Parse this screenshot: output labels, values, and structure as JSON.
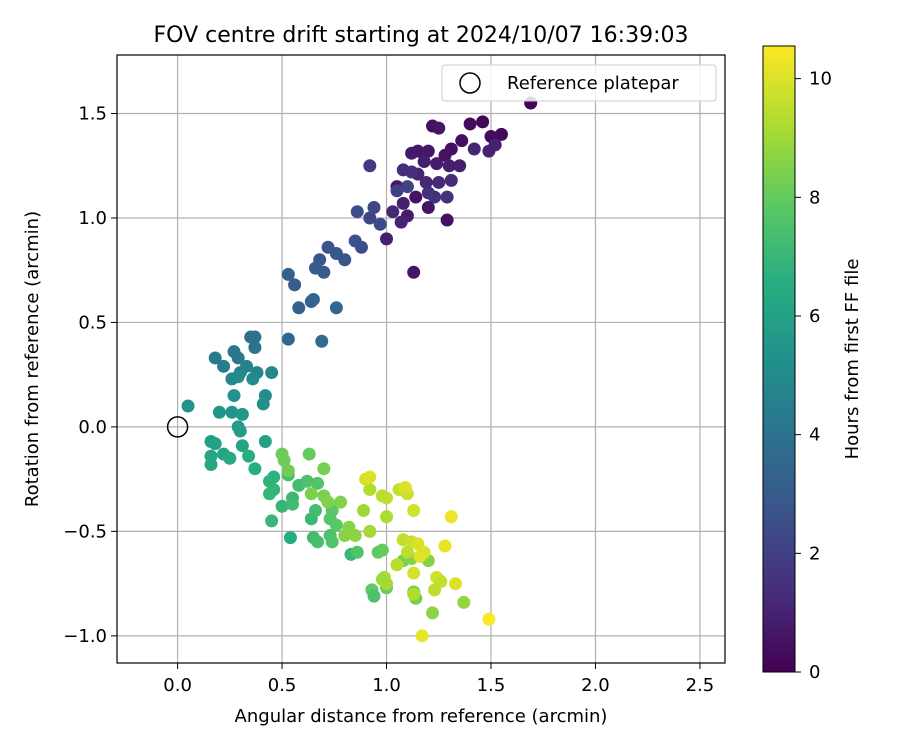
{
  "chart_data": {
    "type": "scatter",
    "title": "FOV centre drift starting at 2024/10/07 16:39:03",
    "xlabel": "Angular distance from reference (arcmin)",
    "ylabel": "Rotation from reference (arcmin)",
    "xlim": [
      -0.29,
      2.62
    ],
    "ylim": [
      -1.13,
      1.78
    ],
    "xticks": [
      0.0,
      0.5,
      1.0,
      1.5,
      2.0,
      2.5
    ],
    "xtick_labels": [
      "0.0",
      "0.5",
      "1.0",
      "1.5",
      "2.0",
      "2.5"
    ],
    "yticks": [
      -1.0,
      -0.5,
      0.0,
      0.5,
      1.0,
      1.5
    ],
    "ytick_labels": [
      "−1.0",
      "−0.5",
      "0.0",
      "0.5",
      "1.0",
      "1.5"
    ],
    "grid": true,
    "legend": {
      "placement": "top-right",
      "entries": [
        "Reference platepar"
      ]
    },
    "reference_point": {
      "x": 0.0,
      "y": 0.0
    },
    "colorbar": {
      "label": "Hours from first FF file",
      "range": [
        0,
        10.55
      ],
      "ticks": [
        0,
        2,
        4,
        6,
        8,
        10
      ],
      "tick_labels": [
        "0",
        "2",
        "4",
        "6",
        "8",
        "10"
      ],
      "colormap": "viridis"
    },
    "points": [
      {
        "x": 1.69,
        "y": 1.55,
        "c": 0.1
      },
      {
        "x": 1.46,
        "y": 1.46,
        "c": 0.2
      },
      {
        "x": 1.55,
        "y": 1.4,
        "c": 0.2
      },
      {
        "x": 1.5,
        "y": 1.39,
        "c": 0.3
      },
      {
        "x": 1.4,
        "y": 1.45,
        "c": 0.3
      },
      {
        "x": 1.36,
        "y": 1.37,
        "c": 0.4
      },
      {
        "x": 1.31,
        "y": 1.33,
        "c": 0.4
      },
      {
        "x": 1.28,
        "y": 1.3,
        "c": 0.5
      },
      {
        "x": 1.22,
        "y": 1.44,
        "c": 0.5
      },
      {
        "x": 1.25,
        "y": 1.43,
        "c": 0.6
      },
      {
        "x": 1.15,
        "y": 1.32,
        "c": 0.6
      },
      {
        "x": 1.12,
        "y": 1.31,
        "c": 0.7
      },
      {
        "x": 1.2,
        "y": 1.32,
        "c": 0.7
      },
      {
        "x": 1.18,
        "y": 1.27,
        "c": 0.8
      },
      {
        "x": 1.24,
        "y": 1.26,
        "c": 0.8
      },
      {
        "x": 1.3,
        "y": 1.25,
        "c": 0.9
      },
      {
        "x": 1.35,
        "y": 1.25,
        "c": 0.9
      },
      {
        "x": 1.49,
        "y": 1.32,
        "c": 1.0
      },
      {
        "x": 1.52,
        "y": 1.35,
        "c": 1.0
      },
      {
        "x": 1.42,
        "y": 1.33,
        "c": 1.1
      },
      {
        "x": 1.15,
        "y": 1.21,
        "c": 1.1
      },
      {
        "x": 1.19,
        "y": 1.17,
        "c": 1.2
      },
      {
        "x": 1.25,
        "y": 1.17,
        "c": 1.2
      },
      {
        "x": 1.31,
        "y": 1.18,
        "c": 1.3
      },
      {
        "x": 1.08,
        "y": 1.23,
        "c": 1.3
      },
      {
        "x": 1.12,
        "y": 1.22,
        "c": 1.4
      },
      {
        "x": 1.2,
        "y": 1.12,
        "c": 1.4
      },
      {
        "x": 1.23,
        "y": 1.1,
        "c": 1.5
      },
      {
        "x": 1.29,
        "y": 1.1,
        "c": 1.5
      },
      {
        "x": 1.14,
        "y": 1.1,
        "c": 0.5
      },
      {
        "x": 1.05,
        "y": 1.15,
        "c": 0.7
      },
      {
        "x": 1.08,
        "y": 1.07,
        "c": 0.9
      },
      {
        "x": 1.03,
        "y": 1.03,
        "c": 1.1
      },
      {
        "x": 1.1,
        "y": 1.01,
        "c": 0.8
      },
      {
        "x": 1.07,
        "y": 0.98,
        "c": 1.0
      },
      {
        "x": 1.2,
        "y": 1.05,
        "c": 0.6
      },
      {
        "x": 1.29,
        "y": 0.99,
        "c": 0.5
      },
      {
        "x": 1.0,
        "y": 0.9,
        "c": 0.9
      },
      {
        "x": 1.13,
        "y": 0.74,
        "c": 0.6
      },
      {
        "x": 0.92,
        "y": 1.25,
        "c": 1.8
      },
      {
        "x": 1.05,
        "y": 1.13,
        "c": 2.0
      },
      {
        "x": 1.1,
        "y": 1.15,
        "c": 2.1
      },
      {
        "x": 0.92,
        "y": 1.0,
        "c": 2.2
      },
      {
        "x": 0.94,
        "y": 1.05,
        "c": 2.3
      },
      {
        "x": 0.97,
        "y": 0.97,
        "c": 2.4
      },
      {
        "x": 0.86,
        "y": 1.03,
        "c": 2.5
      },
      {
        "x": 0.88,
        "y": 0.86,
        "c": 2.5
      },
      {
        "x": 0.85,
        "y": 0.89,
        "c": 2.6
      },
      {
        "x": 0.72,
        "y": 0.86,
        "c": 2.7
      },
      {
        "x": 0.76,
        "y": 0.83,
        "c": 2.8
      },
      {
        "x": 0.8,
        "y": 0.8,
        "c": 2.8
      },
      {
        "x": 0.68,
        "y": 0.8,
        "c": 2.9
      },
      {
        "x": 0.66,
        "y": 0.76,
        "c": 3.0
      },
      {
        "x": 0.7,
        "y": 0.74,
        "c": 3.0
      },
      {
        "x": 0.56,
        "y": 0.68,
        "c": 3.1
      },
      {
        "x": 0.58,
        "y": 0.57,
        "c": 3.2
      },
      {
        "x": 0.53,
        "y": 0.73,
        "c": 3.2
      },
      {
        "x": 0.64,
        "y": 0.6,
        "c": 3.3
      },
      {
        "x": 0.65,
        "y": 0.61,
        "c": 3.4
      },
      {
        "x": 0.76,
        "y": 0.57,
        "c": 3.5
      },
      {
        "x": 0.53,
        "y": 0.42,
        "c": 3.6
      },
      {
        "x": 0.69,
        "y": 0.41,
        "c": 3.7
      },
      {
        "x": 0.35,
        "y": 0.43,
        "c": 3.8
      },
      {
        "x": 0.37,
        "y": 0.43,
        "c": 3.9
      },
      {
        "x": 0.37,
        "y": 0.38,
        "c": 4.0
      },
      {
        "x": 0.27,
        "y": 0.36,
        "c": 4.1
      },
      {
        "x": 0.29,
        "y": 0.33,
        "c": 4.2
      },
      {
        "x": 0.18,
        "y": 0.33,
        "c": 4.3
      },
      {
        "x": 0.22,
        "y": 0.29,
        "c": 4.4
      },
      {
        "x": 0.3,
        "y": 0.26,
        "c": 4.5
      },
      {
        "x": 0.33,
        "y": 0.29,
        "c": 4.6
      },
      {
        "x": 0.38,
        "y": 0.26,
        "c": 4.7
      },
      {
        "x": 0.45,
        "y": 0.26,
        "c": 4.8
      },
      {
        "x": 0.26,
        "y": 0.23,
        "c": 4.9
      },
      {
        "x": 0.29,
        "y": 0.24,
        "c": 5.0
      },
      {
        "x": 0.36,
        "y": 0.23,
        "c": 5.0
      },
      {
        "x": 0.42,
        "y": 0.15,
        "c": 5.1
      },
      {
        "x": 0.41,
        "y": 0.11,
        "c": 5.2
      },
      {
        "x": 0.27,
        "y": 0.15,
        "c": 5.3
      },
      {
        "x": 0.05,
        "y": 0.1,
        "c": 5.4
      },
      {
        "x": 0.2,
        "y": 0.07,
        "c": 5.5
      },
      {
        "x": 0.26,
        "y": 0.07,
        "c": 5.5
      },
      {
        "x": 0.31,
        "y": 0.06,
        "c": 5.6
      },
      {
        "x": 0.29,
        "y": 0.0,
        "c": 5.7
      },
      {
        "x": 0.3,
        "y": -0.02,
        "c": 5.8
      },
      {
        "x": 0.16,
        "y": -0.07,
        "c": 5.9
      },
      {
        "x": 0.18,
        "y": -0.08,
        "c": 6.0
      },
      {
        "x": 0.42,
        "y": -0.07,
        "c": 6.0
      },
      {
        "x": 0.31,
        "y": -0.09,
        "c": 6.1
      },
      {
        "x": 0.22,
        "y": -0.13,
        "c": 6.2
      },
      {
        "x": 0.16,
        "y": -0.14,
        "c": 6.2
      },
      {
        "x": 0.16,
        "y": -0.18,
        "c": 6.3
      },
      {
        "x": 0.25,
        "y": -0.15,
        "c": 6.4
      },
      {
        "x": 0.34,
        "y": -0.14,
        "c": 6.5
      },
      {
        "x": 0.37,
        "y": -0.2,
        "c": 6.6
      },
      {
        "x": 0.46,
        "y": -0.24,
        "c": 6.7
      },
      {
        "x": 0.44,
        "y": -0.26,
        "c": 6.8
      },
      {
        "x": 0.46,
        "y": -0.3,
        "c": 6.9
      },
      {
        "x": 0.44,
        "y": -0.32,
        "c": 7.0
      },
      {
        "x": 0.5,
        "y": -0.38,
        "c": 7.0
      },
      {
        "x": 0.55,
        "y": -0.34,
        "c": 7.1
      },
      {
        "x": 0.55,
        "y": -0.37,
        "c": 7.2
      },
      {
        "x": 0.58,
        "y": -0.28,
        "c": 7.3
      },
      {
        "x": 0.53,
        "y": -0.23,
        "c": 7.4
      },
      {
        "x": 0.62,
        "y": -0.26,
        "c": 7.5
      },
      {
        "x": 0.67,
        "y": -0.27,
        "c": 7.6
      },
      {
        "x": 0.45,
        "y": -0.45,
        "c": 7.0
      },
      {
        "x": 0.54,
        "y": -0.53,
        "c": 6.5
      },
      {
        "x": 0.64,
        "y": -0.44,
        "c": 7.1
      },
      {
        "x": 0.66,
        "y": -0.4,
        "c": 7.3
      },
      {
        "x": 0.65,
        "y": -0.53,
        "c": 7.2
      },
      {
        "x": 0.67,
        "y": -0.55,
        "c": 7.4
      },
      {
        "x": 0.73,
        "y": -0.52,
        "c": 7.5
      },
      {
        "x": 0.74,
        "y": -0.55,
        "c": 7.6
      },
      {
        "x": 0.73,
        "y": -0.44,
        "c": 7.7
      },
      {
        "x": 0.74,
        "y": -0.4,
        "c": 7.8
      },
      {
        "x": 0.76,
        "y": -0.47,
        "c": 7.8
      },
      {
        "x": 0.83,
        "y": -0.61,
        "c": 7.0
      },
      {
        "x": 0.86,
        "y": -0.6,
        "c": 7.6
      },
      {
        "x": 0.96,
        "y": -0.6,
        "c": 7.9
      },
      {
        "x": 0.98,
        "y": -0.59,
        "c": 8.0
      },
      {
        "x": 0.93,
        "y": -0.78,
        "c": 7.9
      },
      {
        "x": 0.94,
        "y": -0.81,
        "c": 7.5
      },
      {
        "x": 1.0,
        "y": -0.77,
        "c": 8.1
      },
      {
        "x": 1.13,
        "y": -0.79,
        "c": 8.2
      },
      {
        "x": 1.14,
        "y": -0.82,
        "c": 8.3
      },
      {
        "x": 1.08,
        "y": -0.64,
        "c": 8.4
      },
      {
        "x": 1.12,
        "y": -0.63,
        "c": 8.5
      },
      {
        "x": 1.2,
        "y": -0.64,
        "c": 8.6
      },
      {
        "x": 1.22,
        "y": -0.89,
        "c": 8.7
      },
      {
        "x": 1.37,
        "y": -0.84,
        "c": 8.8
      },
      {
        "x": 0.63,
        "y": -0.13,
        "c": 8.0
      },
      {
        "x": 0.5,
        "y": -0.13,
        "c": 8.1
      },
      {
        "x": 0.51,
        "y": -0.16,
        "c": 8.2
      },
      {
        "x": 0.53,
        "y": -0.21,
        "c": 8.2
      },
      {
        "x": 0.7,
        "y": -0.2,
        "c": 8.3
      },
      {
        "x": 0.64,
        "y": -0.32,
        "c": 8.4
      },
      {
        "x": 0.7,
        "y": -0.33,
        "c": 8.4
      },
      {
        "x": 0.72,
        "y": -0.36,
        "c": 8.5
      },
      {
        "x": 0.78,
        "y": -0.36,
        "c": 8.5
      },
      {
        "x": 0.82,
        "y": -0.48,
        "c": 8.6
      },
      {
        "x": 0.8,
        "y": -0.52,
        "c": 8.6
      },
      {
        "x": 0.85,
        "y": -0.52,
        "c": 8.7
      },
      {
        "x": 0.89,
        "y": -0.4,
        "c": 9.0
      },
      {
        "x": 0.92,
        "y": -0.5,
        "c": 9.1
      },
      {
        "x": 1.0,
        "y": -0.43,
        "c": 9.2
      },
      {
        "x": 0.92,
        "y": -0.3,
        "c": 9.3
      },
      {
        "x": 0.98,
        "y": -0.33,
        "c": 9.4
      },
      {
        "x": 1.0,
        "y": -0.34,
        "c": 9.5
      },
      {
        "x": 1.06,
        "y": -0.3,
        "c": 9.6
      },
      {
        "x": 1.1,
        "y": -0.32,
        "c": 9.7
      },
      {
        "x": 1.13,
        "y": -0.4,
        "c": 9.8
      },
      {
        "x": 0.9,
        "y": -0.25,
        "c": 9.9
      },
      {
        "x": 0.92,
        "y": -0.24,
        "c": 10.0
      },
      {
        "x": 1.09,
        "y": -0.29,
        "c": 10.0
      },
      {
        "x": 1.08,
        "y": -0.54,
        "c": 9.6
      },
      {
        "x": 1.12,
        "y": -0.55,
        "c": 9.7
      },
      {
        "x": 1.15,
        "y": -0.56,
        "c": 9.9
      },
      {
        "x": 1.18,
        "y": -0.6,
        "c": 10.0
      },
      {
        "x": 1.16,
        "y": -0.62,
        "c": 10.1
      },
      {
        "x": 1.05,
        "y": -0.66,
        "c": 9.4
      },
      {
        "x": 1.1,
        "y": -0.6,
        "c": 9.5
      },
      {
        "x": 1.28,
        "y": -0.57,
        "c": 10.2
      },
      {
        "x": 1.31,
        "y": -0.43,
        "c": 10.3
      },
      {
        "x": 1.13,
        "y": -0.7,
        "c": 9.9
      },
      {
        "x": 1.24,
        "y": -0.72,
        "c": 9.8
      },
      {
        "x": 1.26,
        "y": -0.74,
        "c": 9.6
      },
      {
        "x": 1.23,
        "y": -0.78,
        "c": 9.5
      },
      {
        "x": 1.33,
        "y": -0.75,
        "c": 10.0
      },
      {
        "x": 0.99,
        "y": -0.72,
        "c": 9.2
      },
      {
        "x": 1.0,
        "y": -0.75,
        "c": 9.1
      },
      {
        "x": 0.98,
        "y": -0.73,
        "c": 9.0
      },
      {
        "x": 1.13,
        "y": -0.8,
        "c": 9.3
      },
      {
        "x": 1.17,
        "y": -1.0,
        "c": 10.2
      },
      {
        "x": 1.49,
        "y": -0.92,
        "c": 10.5
      }
    ]
  }
}
